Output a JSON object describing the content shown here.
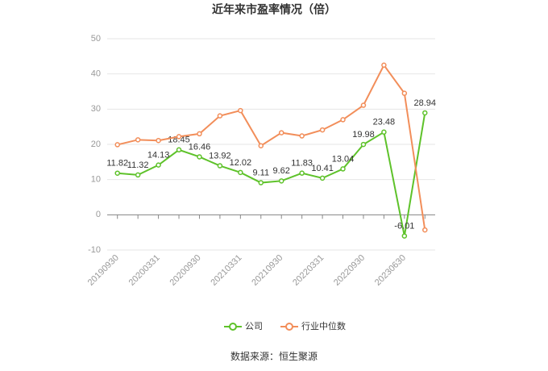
{
  "chart_data": {
    "type": "line",
    "title": "近年来市盈率情况（倍）",
    "categories": [
      "20190930",
      null,
      "20200331",
      null,
      "20200930",
      null,
      "20210331",
      null,
      "20210930",
      null,
      "20220331",
      null,
      "20220930",
      null,
      "20230630",
      null
    ],
    "series": [
      {
        "name": "公司",
        "color": "#5ec22a",
        "values": [
          11.82,
          11.32,
          14.13,
          18.45,
          16.46,
          13.92,
          12.02,
          9.11,
          9.62,
          11.83,
          10.41,
          13.04,
          19.98,
          23.48,
          -6.01,
          28.94
        ],
        "data_labels": true
      },
      {
        "name": "行业中位数",
        "color": "#f28e5a",
        "values": [
          19.9,
          21.3,
          21.1,
          22.2,
          23.0,
          28.1,
          29.6,
          19.6,
          23.3,
          22.4,
          24.1,
          27.0,
          31.1,
          42.5,
          34.5,
          -4.3
        ]
      }
    ],
    "ylim": [
      -10,
      50
    ],
    "yticks": [
      -10,
      0,
      10,
      20,
      30,
      40,
      50
    ],
    "grid": true,
    "legend": "bottom",
    "source": "数据来源：恒生聚源"
  }
}
